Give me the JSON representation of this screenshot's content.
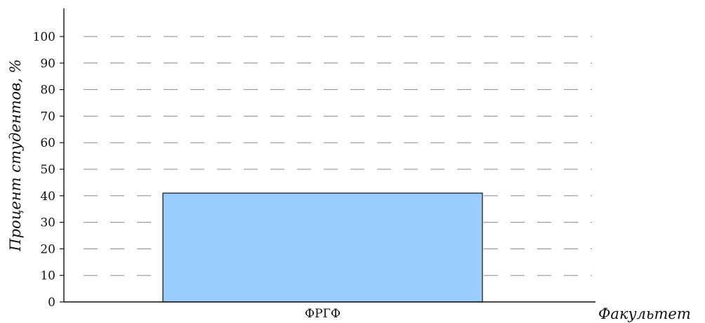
{
  "chart_data": {
    "type": "bar",
    "categories": [
      "ФРГФ"
    ],
    "values": [
      41
    ],
    "xlabel": "Факультет",
    "ylabel": "Процент студентов, %",
    "ylim": [
      0,
      100
    ],
    "yticks": [
      0,
      10,
      20,
      30,
      40,
      50,
      60,
      70,
      80,
      90,
      100
    ],
    "grid": "dashed horizontal",
    "colors": {
      "bar_fill": "#99ccff",
      "bar_stroke": "#111111",
      "grid": "#888888",
      "axis": "#111111"
    }
  }
}
